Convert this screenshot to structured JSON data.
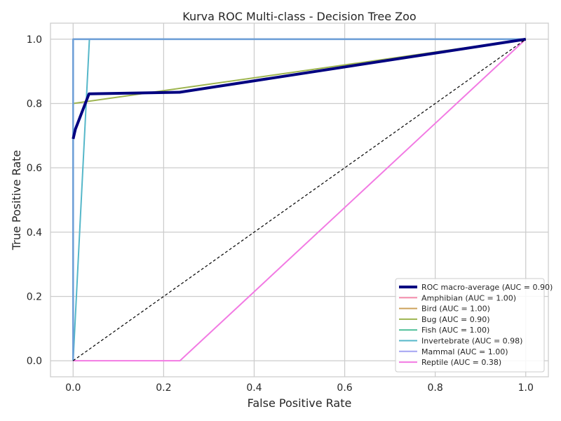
{
  "chart_data": {
    "type": "line",
    "title": "Kurva ROC Multi-class - Decision Tree Zoo",
    "xlabel": "False Positive Rate",
    "ylabel": "True Positive Rate",
    "xlim": [
      -0.05,
      1.05
    ],
    "ylim": [
      -0.05,
      1.05
    ],
    "xticks": [
      "0.0",
      "0.2",
      "0.4",
      "0.6",
      "0.8",
      "1.0"
    ],
    "yticks": [
      "0.0",
      "0.2",
      "0.4",
      "0.6",
      "0.8",
      "1.0"
    ],
    "grid": true,
    "legend_position": "lower-right",
    "diagonal": {
      "x": [
        0,
        1
      ],
      "y": [
        0,
        1
      ],
      "color": "#000000",
      "style": "dashed"
    },
    "series": [
      {
        "name": "ROC macro-average (AUC = 0.90)",
        "color": "#000080",
        "width": 4,
        "x": [
          0,
          0,
          0.005,
          0.035,
          0.235,
          1.0
        ],
        "y": [
          0.69,
          0.69,
          0.72,
          0.83,
          0.835,
          1.0
        ]
      },
      {
        "name": "Amphibian (AUC = 1.00)",
        "color": "#f38bab",
        "width": 2,
        "x": [
          0,
          0,
          1
        ],
        "y": [
          0,
          1,
          1
        ]
      },
      {
        "name": "Bird (AUC = 1.00)",
        "color": "#cda25c",
        "width": 2,
        "x": [
          0,
          0,
          1
        ],
        "y": [
          0,
          1,
          1
        ]
      },
      {
        "name": "Bug (AUC = 0.90)",
        "color": "#9db44f",
        "width": 2,
        "x": [
          0,
          0,
          1
        ],
        "y": [
          0,
          0.8,
          1
        ]
      },
      {
        "name": "Fish (AUC = 1.00)",
        "color": "#4ebf98",
        "width": 2,
        "x": [
          0,
          0,
          1
        ],
        "y": [
          0,
          1,
          1
        ]
      },
      {
        "name": "Invertebrate (AUC = 0.98)",
        "color": "#55b7c9",
        "width": 2,
        "x": [
          0,
          0.036,
          1
        ],
        "y": [
          0,
          1,
          1
        ]
      },
      {
        "name": "Mammal (AUC = 1.00)",
        "color": "#a3a4f2",
        "width": 2,
        "x": [
          0,
          0,
          1
        ],
        "y": [
          0,
          1,
          1
        ]
      },
      {
        "name": "Reptile (AUC = 0.38)",
        "color": "#f27ae3",
        "width": 2,
        "x": [
          0,
          0.236,
          1
        ],
        "y": [
          0,
          0,
          1
        ]
      },
      {
        "color": "#6d9fd8",
        "width": 2.5,
        "x": [
          0,
          0,
          1
        ],
        "y": [
          0,
          1,
          1
        ]
      }
    ]
  }
}
